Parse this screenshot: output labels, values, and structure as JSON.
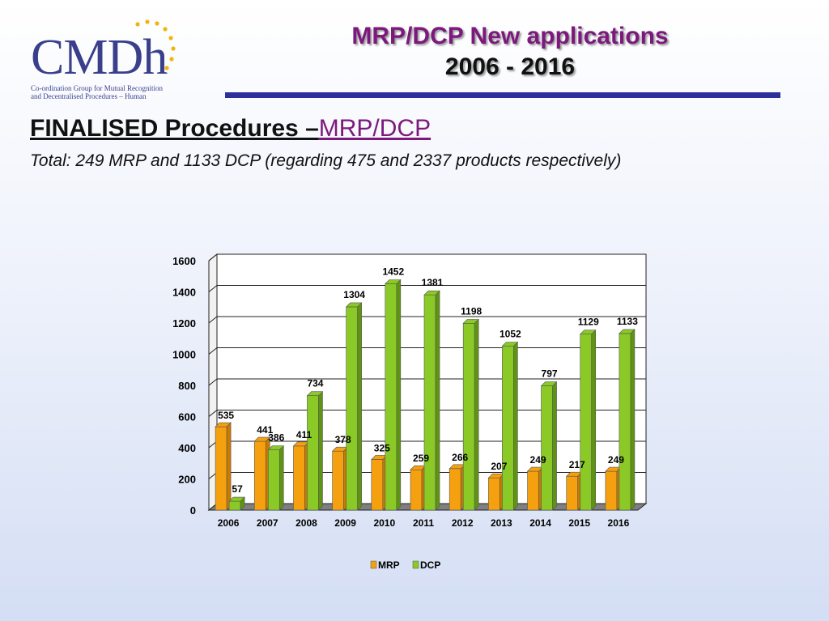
{
  "logo": {
    "text": "CMDh",
    "subtitle_line1": "Co-ordination Group for Mutual Recognition",
    "subtitle_line2": "and Decentralised Procedures – Human"
  },
  "header": {
    "title_line1": "MRP/DCP New applications",
    "title_line2": "2006 - 2016"
  },
  "section": {
    "heading": "FINALISED Procedures –",
    "heading_link": "MRP/DCP",
    "summary": "Total: 249 MRP and 1133 DCP (regarding 475 and 2337 products respectively)"
  },
  "colors": {
    "mrp": "#f5a00f",
    "mrp_dark": "#c97b00",
    "dcp": "#8ac926",
    "dcp_dark": "#5f9413",
    "title_purple": "#7b1a7c",
    "rule_blue": "#2d2f9c"
  },
  "chart_data": {
    "type": "bar",
    "categories": [
      "2006",
      "2007",
      "2008",
      "2009",
      "2010",
      "2011",
      "2012",
      "2013",
      "2014",
      "2015",
      "2016"
    ],
    "series": [
      {
        "name": "MRP",
        "values": [
          535,
          441,
          411,
          378,
          325,
          259,
          266,
          207,
          249,
          217,
          249
        ]
      },
      {
        "name": "DCP",
        "values": [
          57,
          386,
          734,
          1304,
          1452,
          1381,
          1198,
          1052,
          797,
          1129,
          1133
        ]
      }
    ],
    "yticks": [
      0,
      200,
      400,
      600,
      800,
      1000,
      1200,
      1400,
      1600
    ],
    "ylim": [
      0,
      1600
    ],
    "legend_position": "bottom",
    "title": "",
    "xlabel": "",
    "ylabel": ""
  }
}
